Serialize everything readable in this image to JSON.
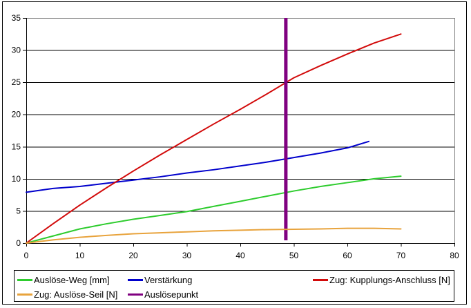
{
  "window": {
    "background": "#FFFFFF",
    "frame_border_color": "#000000"
  },
  "chart_data": {
    "type": "line",
    "title": "",
    "xlabel": "",
    "ylabel": "",
    "xlim": [
      0,
      80
    ],
    "ylim": [
      0,
      35
    ],
    "x_ticks": [
      0,
      10,
      20,
      30,
      40,
      50,
      60,
      70,
      80
    ],
    "y_ticks": [
      0,
      5,
      10,
      15,
      20,
      25,
      30,
      35
    ],
    "grid": "horizontal-only",
    "gridline_color": "#000000",
    "plot_top_right_border_color": "#808080",
    "axis_color": "#000000",
    "text_color": "#000000",
    "legend_position": "bottom",
    "series": [
      {
        "name": "Auslöse-Weg [mm]",
        "color": "#2ECC2E",
        "x": [
          0,
          5,
          10,
          15,
          20,
          25,
          30,
          35,
          40,
          45,
          50,
          55,
          60,
          65,
          70
        ],
        "y": [
          0,
          1.1,
          2.2,
          3.0,
          3.7,
          4.3,
          4.9,
          5.7,
          6.5,
          7.3,
          8.1,
          8.8,
          9.4,
          10.0,
          10.4
        ]
      },
      {
        "name": "Verstärkung",
        "color": "#0000CC",
        "x": [
          0,
          5,
          10,
          15,
          20,
          25,
          30,
          35,
          40,
          45,
          50,
          55,
          60,
          64
        ],
        "y": [
          7.9,
          8.5,
          8.8,
          9.3,
          9.8,
          10.3,
          10.9,
          11.4,
          12.0,
          12.6,
          13.3,
          14.0,
          14.8,
          15.8
        ]
      },
      {
        "name": "Zug: Kupplungs-Anschluss [N]",
        "color": "#D20A0A",
        "x": [
          0,
          5,
          10,
          15,
          20,
          25,
          30,
          35,
          40,
          45,
          50,
          55,
          60,
          65,
          70
        ],
        "y": [
          0,
          3.0,
          5.9,
          8.6,
          11.2,
          13.7,
          16.1,
          18.5,
          20.8,
          23.2,
          25.7,
          27.6,
          29.4,
          31.1,
          32.5
        ]
      },
      {
        "name": "Zug: Auslöse-Seil [N]",
        "color": "#E8A33C",
        "x": [
          0,
          5,
          10,
          15,
          20,
          25,
          30,
          35,
          40,
          45,
          50,
          55,
          60,
          65,
          70
        ],
        "y": [
          0,
          0.5,
          0.9,
          1.2,
          1.45,
          1.6,
          1.75,
          1.9,
          2.0,
          2.1,
          2.15,
          2.2,
          2.3,
          2.3,
          2.2
        ]
      }
    ],
    "marker_line": {
      "name": "Auslösepunkt",
      "x": 48.5,
      "from_y": 0,
      "to_y": 35,
      "color": "#800080"
    },
    "legend": {
      "items": [
        {
          "label": "Auslöse-Weg [mm]",
          "color": "#2ECC2E"
        },
        {
          "label": "Verstärkung",
          "color": "#0000CC"
        },
        {
          "label": "Zug: Kupplungs-Anschluss [N]",
          "color": "#D20A0A"
        },
        {
          "label": "Zug: Auslöse-Seil [N]",
          "color": "#E8A33C"
        },
        {
          "label": "Auslösepunkt",
          "color": "#800080"
        }
      ]
    }
  }
}
